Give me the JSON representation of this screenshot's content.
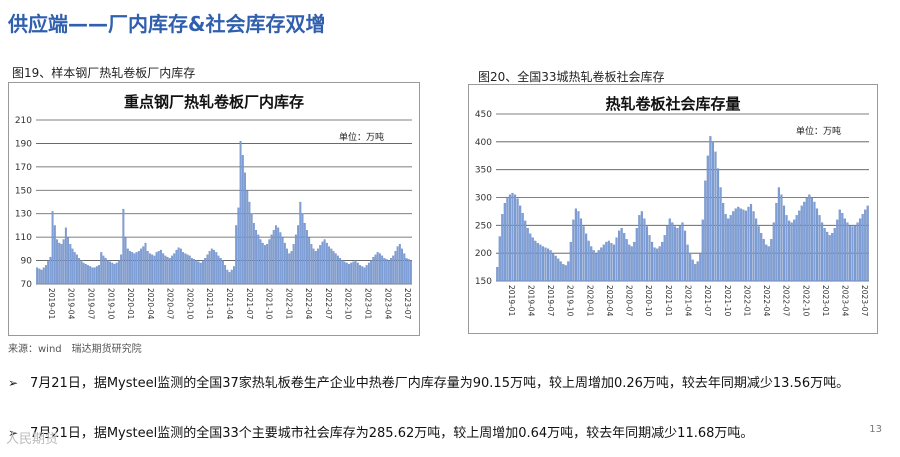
{
  "slide": {
    "title": "供应端——厂内库存&社会库存双增",
    "source": "来源：wind　瑞达期货研究院",
    "page_number": "13",
    "watermark": "人民期货"
  },
  "bullets": [
    {
      "marker": "➢",
      "text": "7月21日，据Mysteel监测的全国37家热轧板卷生产企业中热卷厂内库存量为90.15万吨，较上周增加0.26万吨，较去年同期减少13.56万吨。"
    },
    {
      "marker": "➢",
      "text": "7月21日，据Mysteel监测的全国33个主要城市社会库存为285.62万吨，较上周增加0.64万吨，较去年同期减少11.68万吨。"
    }
  ],
  "colors": {
    "bar": "#7f9fd6",
    "bar_edge": "#4d6fb0",
    "grid": "#555555",
    "title_blue": "#2f5fae"
  },
  "chart_data": [
    {
      "type": "bar",
      "caption": "图19、样本钢厂热轧卷板厂内库存",
      "title": "重点钢厂热轧卷板厂内库存",
      "unit": "单位：万吨",
      "ylim": [
        70,
        210
      ],
      "yticks": [
        70,
        90,
        110,
        130,
        150,
        170,
        190,
        210
      ],
      "grid": true,
      "xlabels": [
        "2019-01",
        "2019-04",
        "2019-07",
        "2019-10",
        "2020-01",
        "2020-04",
        "2020-07",
        "2020-10",
        "2021-01",
        "2021-04",
        "2021-07",
        "2021-10",
        "2022-01",
        "2022-04",
        "2022-07",
        "2022-10",
        "2023-01",
        "2023-04",
        "2023-07"
      ],
      "values": [
        84,
        83,
        82,
        84,
        86,
        90,
        93,
        132,
        120,
        108,
        105,
        104,
        108,
        118,
        110,
        104,
        100,
        97,
        95,
        92,
        90,
        88,
        87,
        86,
        85,
        84,
        84,
        85,
        86,
        97,
        94,
        92,
        90,
        89,
        88,
        87,
        88,
        90,
        95,
        134,
        110,
        100,
        98,
        97,
        96,
        97,
        98,
        100,
        102,
        105,
        98,
        96,
        95,
        94,
        97,
        98,
        99,
        96,
        94,
        93,
        92,
        94,
        96,
        99,
        101,
        100,
        97,
        96,
        95,
        94,
        92,
        91,
        90,
        89,
        88,
        90,
        92,
        95,
        98,
        100,
        99,
        97,
        94,
        92,
        90,
        86,
        82,
        80,
        82,
        85,
        120,
        135,
        192,
        180,
        165,
        150,
        140,
        130,
        122,
        116,
        112,
        108,
        105,
        103,
        104,
        108,
        112,
        116,
        120,
        118,
        114,
        110,
        105,
        100,
        96,
        98,
        104,
        112,
        120,
        140,
        130,
        122,
        116,
        110,
        104,
        100,
        98,
        100,
        103,
        106,
        108,
        105,
        102,
        100,
        98,
        96,
        94,
        92,
        90,
        89,
        88,
        87,
        88,
        89,
        90,
        88,
        86,
        85,
        84,
        86,
        88,
        90,
        93,
        95,
        97,
        96,
        94,
        92,
        91,
        90,
        92,
        94,
        98,
        102,
        104,
        100,
        96,
        92,
        91,
        90
      ]
    },
    {
      "type": "bar",
      "caption": "图20、全国33城热轧卷板社会库存",
      "title": "热轧卷板社会库存量",
      "unit": "单位：万吨",
      "ylim": [
        150,
        450
      ],
      "yticks": [
        150,
        200,
        250,
        300,
        350,
        400,
        450
      ],
      "grid": true,
      "xlabels": [
        "2019-01",
        "2019-04",
        "2019-07",
        "2019-10",
        "2020-01",
        "2020-04",
        "2020-07",
        "2020-10",
        "2021-01",
        "2021-04",
        "2021-07",
        "2021-10",
        "2022-01",
        "2022-04",
        "2022-07",
        "2022-10",
        "2023-01",
        "2023-04",
        "2023-07"
      ],
      "values": [
        175,
        230,
        270,
        290,
        300,
        305,
        308,
        305,
        298,
        285,
        272,
        258,
        245,
        235,
        228,
        222,
        218,
        215,
        212,
        210,
        208,
        205,
        200,
        195,
        190,
        185,
        180,
        178,
        185,
        220,
        260,
        280,
        275,
        262,
        248,
        235,
        222,
        212,
        205,
        200,
        205,
        210,
        215,
        220,
        222,
        218,
        215,
        228,
        240,
        245,
        236,
        225,
        215,
        212,
        220,
        245,
        268,
        275,
        262,
        248,
        232,
        220,
        210,
        208,
        212,
        220,
        232,
        250,
        262,
        255,
        248,
        245,
        250,
        255,
        240,
        215,
        198,
        188,
        180,
        185,
        200,
        260,
        330,
        375,
        410,
        400,
        382,
        352,
        318,
        290,
        270,
        262,
        268,
        275,
        280,
        283,
        280,
        278,
        276,
        283,
        288,
        275,
        262,
        248,
        236,
        225,
        215,
        212,
        225,
        255,
        290,
        318,
        305,
        285,
        268,
        258,
        255,
        260,
        268,
        276,
        285,
        292,
        300,
        305,
        300,
        292,
        280,
        268,
        255,
        245,
        238,
        232,
        236,
        245,
        260,
        278,
        272,
        262,
        255,
        250,
        248,
        250,
        255,
        262,
        270,
        278,
        285
      ]
    }
  ]
}
